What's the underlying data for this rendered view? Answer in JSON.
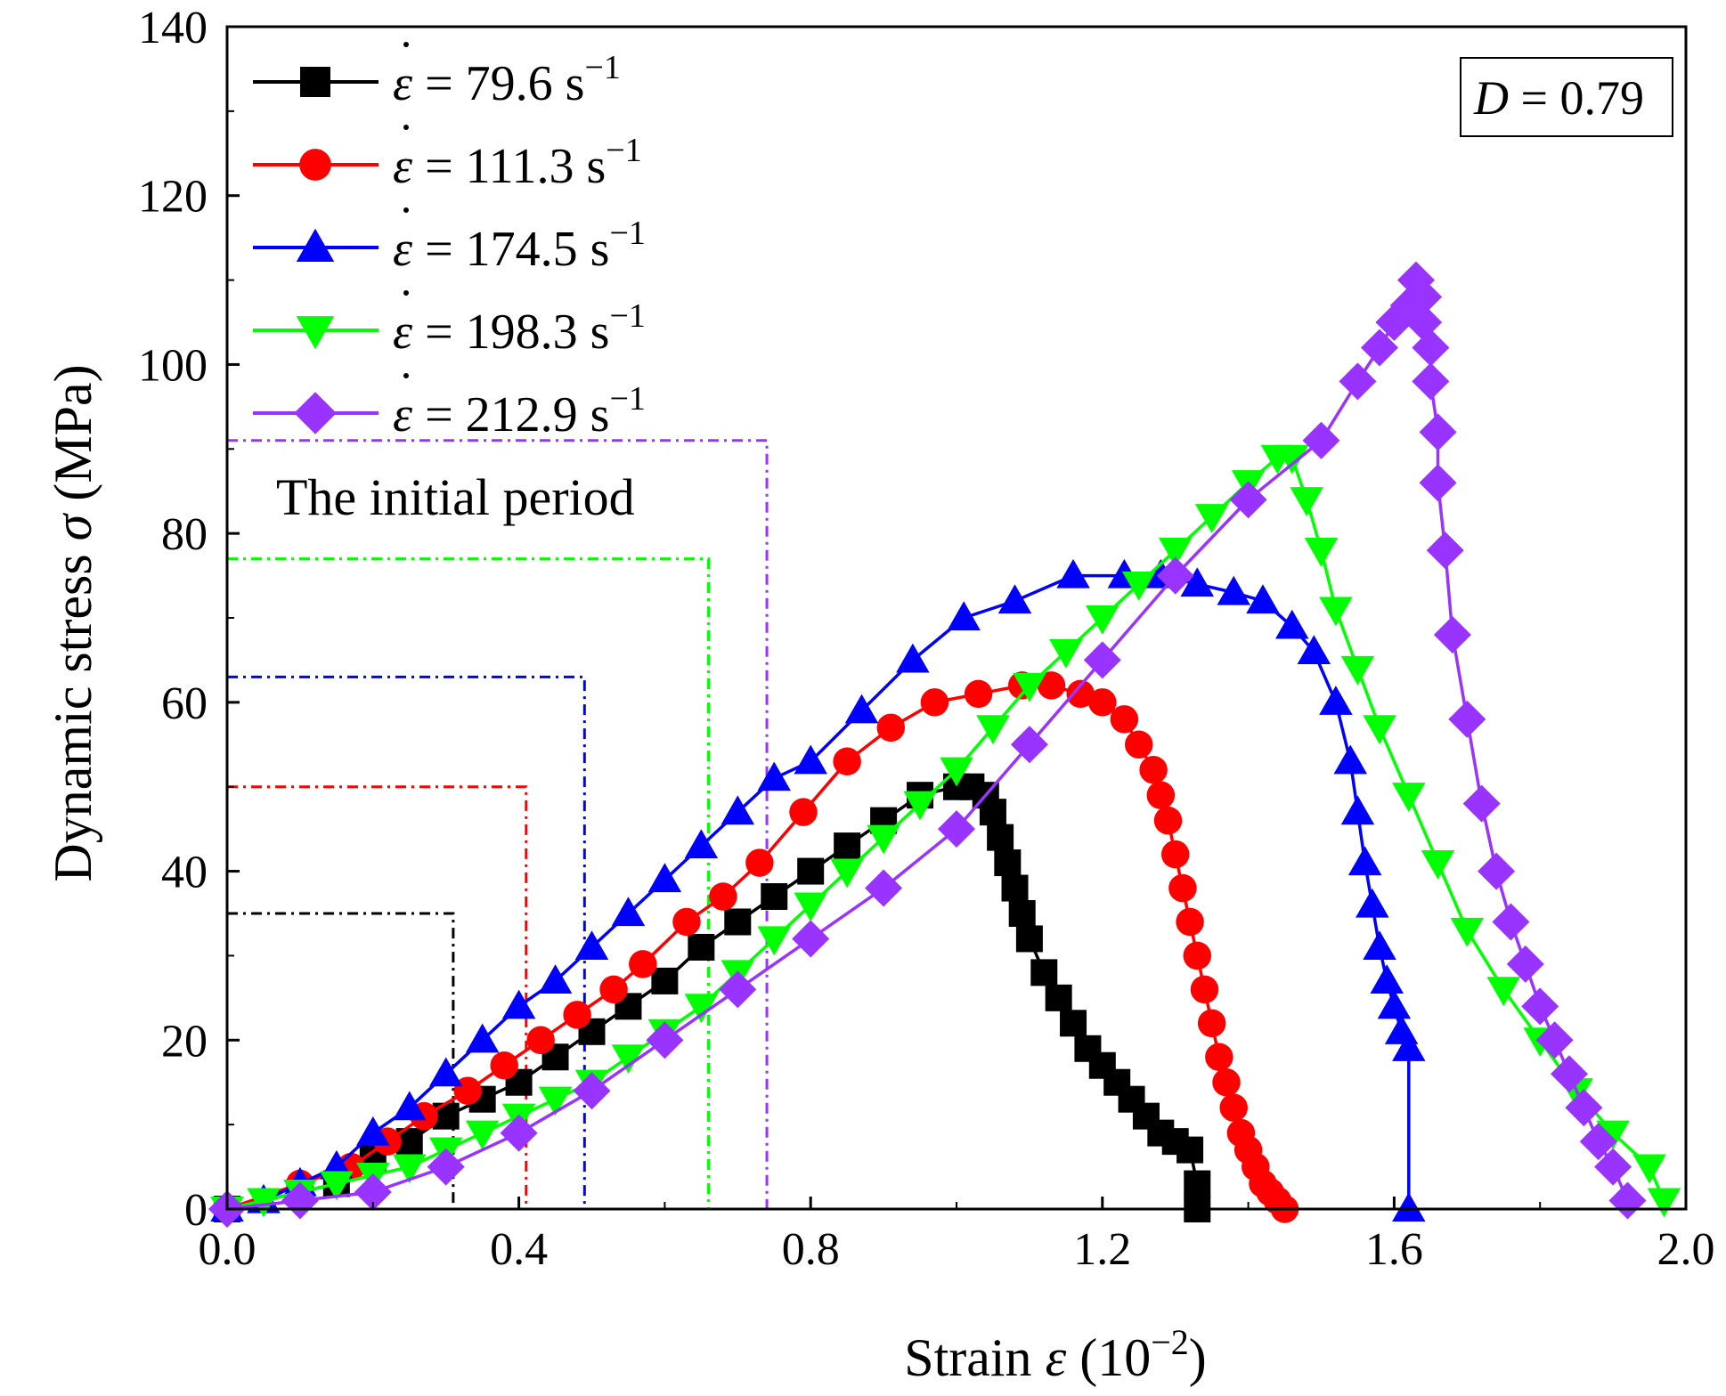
{
  "chart_data": {
    "type": "line",
    "xlabel": {
      "prefix": "Strain ",
      "symbol": "ε",
      "unit_open": " (10",
      "unit_exp": "−2",
      "unit_close": ")"
    },
    "ylabel": {
      "prefix": "Dynamic stress ",
      "symbol": "σ",
      "unit": " (MPa)"
    },
    "xlim": [
      0,
      2.0
    ],
    "ylim": [
      0,
      140
    ],
    "x_major_ticks": [
      0.0,
      0.4,
      0.8,
      1.2,
      1.6,
      2.0
    ],
    "x_tick_labels": [
      "0.0",
      "0.4",
      "0.8",
      "1.2",
      "1.6",
      "2.0"
    ],
    "y_major_ticks": [
      0,
      20,
      40,
      60,
      80,
      100,
      120,
      140
    ],
    "y_tick_labels": [
      "0",
      "20",
      "40",
      "60",
      "80",
      "100",
      "120",
      "140"
    ],
    "x_minor_step": 0.2,
    "y_minor_step": 10,
    "legend_position": "top-left",
    "annotation_box": {
      "symbol": "D",
      "text": " = 0.79",
      "position": "top-right"
    },
    "initial_period_label": "The initial period",
    "series": [
      {
        "name": "79.6",
        "legend_prefix": "ε",
        "legend_text": " = 79.6 s",
        "legend_exp": "−1",
        "color": "#000000",
        "marker": "square",
        "initial_period": {
          "strain": 0.31,
          "stress": 35
        },
        "x": [
          0.0,
          0.1,
          0.15,
          0.2,
          0.25,
          0.3,
          0.35,
          0.4,
          0.45,
          0.5,
          0.55,
          0.6,
          0.65,
          0.7,
          0.75,
          0.8,
          0.85,
          0.9,
          0.95,
          1.0,
          1.02,
          1.04,
          1.05,
          1.06,
          1.07,
          1.08,
          1.09,
          1.1,
          1.12,
          1.14,
          1.16,
          1.18,
          1.2,
          1.22,
          1.24,
          1.26,
          1.28,
          1.3,
          1.32,
          1.33,
          1.33
        ],
        "y": [
          0,
          2,
          3,
          6,
          8,
          11,
          13,
          15,
          18,
          21,
          24,
          27,
          31,
          34,
          37,
          40,
          43,
          46,
          49,
          50,
          50,
          49,
          47,
          44,
          41,
          38,
          35,
          32,
          28,
          25,
          22,
          19,
          17,
          15,
          13,
          11,
          9,
          8,
          7,
          3,
          0
        ]
      },
      {
        "name": "111.3",
        "legend_prefix": "ε",
        "legend_text": " = 111.3 s",
        "legend_exp": "−1",
        "color": "#ff0000",
        "marker": "circle",
        "initial_period": {
          "strain": 0.41,
          "stress": 50
        },
        "x": [
          0.0,
          0.1,
          0.17,
          0.22,
          0.27,
          0.33,
          0.38,
          0.43,
          0.48,
          0.53,
          0.57,
          0.63,
          0.68,
          0.73,
          0.79,
          0.85,
          0.91,
          0.97,
          1.03,
          1.09,
          1.13,
          1.17,
          1.2,
          1.23,
          1.25,
          1.27,
          1.28,
          1.29,
          1.3,
          1.31,
          1.32,
          1.33,
          1.34,
          1.35,
          1.36,
          1.37,
          1.38,
          1.39,
          1.4,
          1.41,
          1.42,
          1.43,
          1.44,
          1.45
        ],
        "y": [
          0,
          3,
          5,
          8,
          11,
          14,
          17,
          20,
          23,
          26,
          29,
          34,
          37,
          41,
          47,
          53,
          57,
          60,
          61,
          62,
          62,
          61,
          60,
          58,
          55,
          52,
          49,
          46,
          42,
          38,
          34,
          30,
          26,
          22,
          18,
          15,
          12,
          9,
          7,
          5,
          3,
          2,
          1,
          0
        ]
      },
      {
        "name": "174.5",
        "legend_prefix": "ε",
        "legend_text": " = 174.5 s",
        "legend_exp": "−1",
        "color": "#0000ff",
        "marker": "triangle-up",
        "initial_period": {
          "strain": 0.49,
          "stress": 63
        },
        "x": [
          0.0,
          0.05,
          0.1,
          0.15,
          0.2,
          0.25,
          0.3,
          0.35,
          0.4,
          0.45,
          0.5,
          0.55,
          0.6,
          0.65,
          0.7,
          0.75,
          0.8,
          0.87,
          0.94,
          1.01,
          1.08,
          1.16,
          1.23,
          1.28,
          1.33,
          1.38,
          1.42,
          1.46,
          1.49,
          1.52,
          1.54,
          1.55,
          1.56,
          1.57,
          1.58,
          1.59,
          1.6,
          1.61,
          1.62,
          1.62
        ],
        "y": [
          0,
          1,
          3,
          5,
          9,
          12,
          16,
          20,
          24,
          27,
          31,
          35,
          39,
          43,
          47,
          51,
          53,
          59,
          65,
          70,
          72,
          75,
          75,
          75,
          74,
          73,
          72,
          69,
          66,
          60,
          53,
          47,
          41,
          36,
          31,
          27,
          24,
          21,
          19,
          0
        ]
      },
      {
        "name": "198.3",
        "legend_prefix": "ε",
        "legend_text": " = 198.3 s",
        "legend_exp": "−1",
        "color": "#00ff00",
        "marker": "triangle-down",
        "initial_period": {
          "strain": 0.66,
          "stress": 77
        },
        "x": [
          0.0,
          0.05,
          0.1,
          0.15,
          0.2,
          0.25,
          0.3,
          0.35,
          0.4,
          0.45,
          0.5,
          0.55,
          0.6,
          0.65,
          0.7,
          0.75,
          0.8,
          0.85,
          0.9,
          0.95,
          1.0,
          1.05,
          1.1,
          1.15,
          1.2,
          1.25,
          1.3,
          1.35,
          1.4,
          1.44,
          1.46,
          1.48,
          1.5,
          1.52,
          1.55,
          1.58,
          1.62,
          1.66,
          1.7,
          1.75,
          1.8,
          1.85,
          1.9,
          1.95,
          1.97
        ],
        "y": [
          0,
          1,
          2,
          3,
          4,
          5,
          7,
          9,
          11,
          13,
          15,
          18,
          21,
          24,
          28,
          32,
          36,
          40,
          44,
          48,
          52,
          57,
          62,
          66,
          70,
          74,
          78,
          82,
          86,
          89,
          89,
          84,
          78,
          71,
          64,
          57,
          49,
          41,
          33,
          26,
          20,
          14,
          9,
          5,
          1
        ]
      },
      {
        "name": "212.9",
        "legend_prefix": "ε",
        "legend_text": " = 212.9 s",
        "legend_exp": "−1",
        "color": "#9933ff",
        "marker": "diamond",
        "initial_period": {
          "strain": 0.74,
          "stress": 91
        },
        "x": [
          0.0,
          0.1,
          0.2,
          0.3,
          0.4,
          0.5,
          0.6,
          0.7,
          0.8,
          0.9,
          1.0,
          1.1,
          1.2,
          1.3,
          1.4,
          1.5,
          1.55,
          1.58,
          1.6,
          1.62,
          1.63,
          1.64,
          1.64,
          1.65,
          1.65,
          1.66,
          1.66,
          1.67,
          1.68,
          1.7,
          1.72,
          1.74,
          1.76,
          1.78,
          1.8,
          1.82,
          1.84,
          1.86,
          1.88,
          1.9,
          1.92
        ],
        "y": [
          0,
          1,
          2,
          5,
          9,
          14,
          20,
          26,
          32,
          38,
          45,
          55,
          65,
          75,
          84,
          91,
          98,
          102,
          105,
          107,
          110,
          108,
          105,
          102,
          98,
          92,
          86,
          78,
          68,
          58,
          48,
          40,
          34,
          29,
          24,
          20,
          16,
          12,
          8,
          5,
          1
        ]
      }
    ]
  }
}
